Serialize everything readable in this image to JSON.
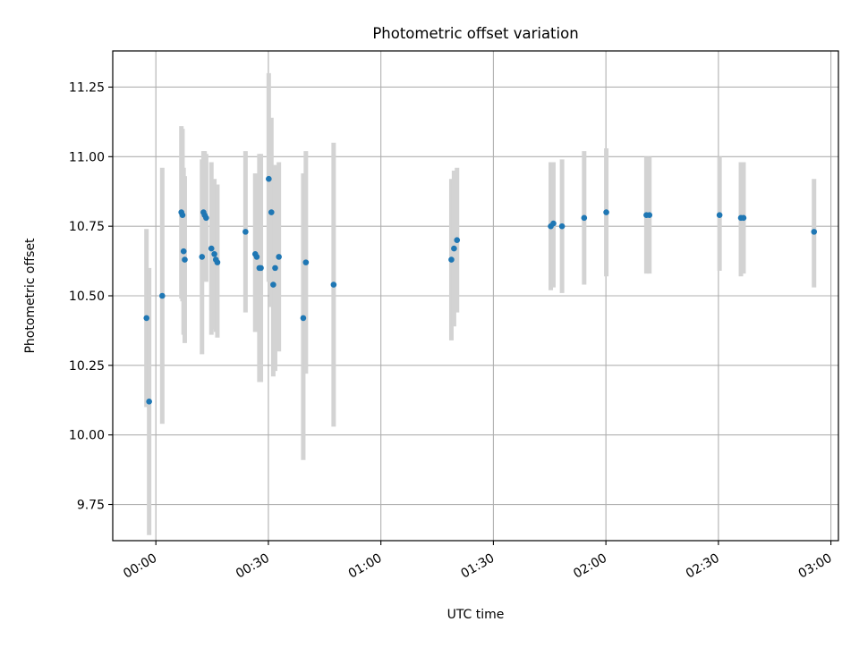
{
  "chart_data": {
    "type": "scatter",
    "title": "Photometric offset variation",
    "xlabel": "UTC time",
    "ylabel": "Photometric offset",
    "x_unit": "minutes after 00:00 UTC",
    "xlim": [
      -11.5,
      182
    ],
    "ylim": [
      9.62,
      11.38
    ],
    "xticks": [
      {
        "value": 0,
        "label": "00:00"
      },
      {
        "value": 30,
        "label": "00:30"
      },
      {
        "value": 60,
        "label": "01:00"
      },
      {
        "value": 90,
        "label": "01:30"
      },
      {
        "value": 120,
        "label": "02:00"
      },
      {
        "value": 150,
        "label": "02:30"
      },
      {
        "value": 180,
        "label": "03:00"
      }
    ],
    "yticks": [
      {
        "value": 9.75,
        "label": "9.75"
      },
      {
        "value": 10.0,
        "label": "10.00"
      },
      {
        "value": 10.25,
        "label": "10.25"
      },
      {
        "value": 10.5,
        "label": "10.50"
      },
      {
        "value": 10.75,
        "label": "10.75"
      },
      {
        "value": 11.0,
        "label": "11.00"
      },
      {
        "value": 11.25,
        "label": "11.25"
      }
    ],
    "grid": true,
    "legend": "none",
    "colors": {
      "points": "#1f77b4",
      "errorbars": "#d3d3d3",
      "grid": "#b0b0b0"
    },
    "points": [
      {
        "x": -2.5,
        "y": 10.42,
        "yerr_low": 10.1,
        "yerr_high": 10.74
      },
      {
        "x": -1.8,
        "y": 10.12,
        "yerr_low": 9.64,
        "yerr_high": 10.6
      },
      {
        "x": 1.7,
        "y": 10.5,
        "yerr_low": 10.04,
        "yerr_high": 10.96
      },
      {
        "x": 6.8,
        "y": 10.8,
        "yerr_low": 10.49,
        "yerr_high": 11.11
      },
      {
        "x": 7.1,
        "y": 10.79,
        "yerr_low": 10.48,
        "yerr_high": 11.1
      },
      {
        "x": 7.4,
        "y": 10.66,
        "yerr_low": 10.36,
        "yerr_high": 10.96
      },
      {
        "x": 7.7,
        "y": 10.63,
        "yerr_low": 10.33,
        "yerr_high": 10.93
      },
      {
        "x": 12.3,
        "y": 10.64,
        "yerr_low": 10.29,
        "yerr_high": 10.99
      },
      {
        "x": 12.7,
        "y": 10.8,
        "yerr_low": 10.58,
        "yerr_high": 11.02
      },
      {
        "x": 13.0,
        "y": 10.79,
        "yerr_low": 10.56,
        "yerr_high": 11.02
      },
      {
        "x": 13.4,
        "y": 10.78,
        "yerr_low": 10.55,
        "yerr_high": 11.01
      },
      {
        "x": 14.8,
        "y": 10.67,
        "yerr_low": 10.36,
        "yerr_high": 10.98
      },
      {
        "x": 15.6,
        "y": 10.65,
        "yerr_low": 10.38,
        "yerr_high": 10.92
      },
      {
        "x": 16.0,
        "y": 10.63,
        "yerr_low": 10.37,
        "yerr_high": 10.9
      },
      {
        "x": 16.4,
        "y": 10.62,
        "yerr_low": 10.35,
        "yerr_high": 10.9
      },
      {
        "x": 23.9,
        "y": 10.73,
        "yerr_low": 10.44,
        "yerr_high": 11.02
      },
      {
        "x": 26.5,
        "y": 10.65,
        "yerr_low": 10.37,
        "yerr_high": 10.94
      },
      {
        "x": 26.9,
        "y": 10.64,
        "yerr_low": 10.37,
        "yerr_high": 10.92
      },
      {
        "x": 27.6,
        "y": 10.6,
        "yerr_low": 10.19,
        "yerr_high": 11.01
      },
      {
        "x": 28.0,
        "y": 10.6,
        "yerr_low": 10.19,
        "yerr_high": 11.01
      },
      {
        "x": 30.1,
        "y": 10.92,
        "yerr_low": 10.55,
        "yerr_high": 11.3
      },
      {
        "x": 30.8,
        "y": 10.8,
        "yerr_low": 10.46,
        "yerr_high": 11.14
      },
      {
        "x": 31.3,
        "y": 10.54,
        "yerr_low": 10.21,
        "yerr_high": 10.87
      },
      {
        "x": 31.8,
        "y": 10.6,
        "yerr_low": 10.23,
        "yerr_high": 10.97
      },
      {
        "x": 32.8,
        "y": 10.64,
        "yerr_low": 10.3,
        "yerr_high": 10.98
      },
      {
        "x": 39.3,
        "y": 10.42,
        "yerr_low": 9.91,
        "yerr_high": 10.94
      },
      {
        "x": 40.0,
        "y": 10.62,
        "yerr_low": 10.22,
        "yerr_high": 11.02
      },
      {
        "x": 47.4,
        "y": 10.54,
        "yerr_low": 10.03,
        "yerr_high": 11.05
      },
      {
        "x": 78.8,
        "y": 10.63,
        "yerr_low": 10.34,
        "yerr_high": 10.92
      },
      {
        "x": 79.5,
        "y": 10.67,
        "yerr_low": 10.39,
        "yerr_high": 10.95
      },
      {
        "x": 80.3,
        "y": 10.7,
        "yerr_low": 10.44,
        "yerr_high": 10.96
      },
      {
        "x": 105.3,
        "y": 10.75,
        "yerr_low": 10.52,
        "yerr_high": 10.98
      },
      {
        "x": 106.0,
        "y": 10.76,
        "yerr_low": 10.53,
        "yerr_high": 10.98
      },
      {
        "x": 108.3,
        "y": 10.75,
        "yerr_low": 10.51,
        "yerr_high": 10.99
      },
      {
        "x": 114.2,
        "y": 10.78,
        "yerr_low": 10.54,
        "yerr_high": 11.02
      },
      {
        "x": 120.1,
        "y": 10.8,
        "yerr_low": 10.57,
        "yerr_high": 11.03
      },
      {
        "x": 130.8,
        "y": 10.79,
        "yerr_low": 10.58,
        "yerr_high": 11.0
      },
      {
        "x": 131.6,
        "y": 10.79,
        "yerr_low": 10.58,
        "yerr_high": 11.0
      },
      {
        "x": 150.3,
        "y": 10.79,
        "yerr_low": 10.59,
        "yerr_high": 11.0
      },
      {
        "x": 156.0,
        "y": 10.78,
        "yerr_low": 10.57,
        "yerr_high": 10.98
      },
      {
        "x": 156.7,
        "y": 10.78,
        "yerr_low": 10.58,
        "yerr_high": 10.98
      },
      {
        "x": 175.5,
        "y": 10.73,
        "yerr_low": 10.53,
        "yerr_high": 10.92
      }
    ]
  }
}
